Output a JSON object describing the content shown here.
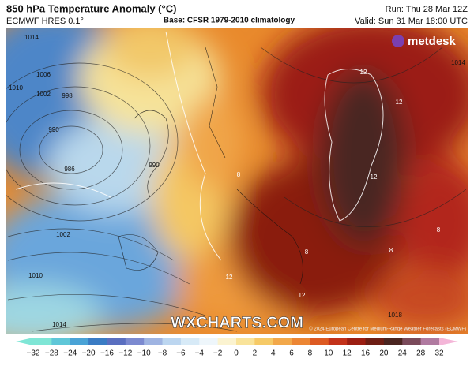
{
  "header": {
    "title": "850 hPa Temperature Anomaly (°C)",
    "model": "ECMWF HRES 0.1°",
    "base": "Base: CFSR 1979-2010 climatology",
    "run": "Run: Thu 28 Mar 12Z",
    "valid": "Valid: Sun 31 Mar 18:00 UTC"
  },
  "logo": "metdesk",
  "watermark": "WXCHARTS.COM",
  "credit": "© 2024 European Centre for Medium-Range Weather Forecasts (ECMWF)",
  "isobar_labels": [
    "1014",
    "1006",
    "1010",
    "1002",
    "998",
    "990",
    "986",
    "990",
    "1002",
    "1010",
    "1014",
    "1014",
    "1018"
  ],
  "anomaly_labels": [
    "12",
    "12",
    "12",
    "8",
    "8",
    "8",
    "12",
    "12",
    "8"
  ],
  "colorbar": {
    "labels": [
      "−32",
      "−28",
      "−24",
      "−20",
      "−16",
      "−12",
      "−10",
      "−8",
      "−6",
      "−4",
      "−2",
      "0",
      "2",
      "4",
      "6",
      "8",
      "10",
      "12",
      "16",
      "20",
      "24",
      "28",
      "32"
    ]
  }
}
